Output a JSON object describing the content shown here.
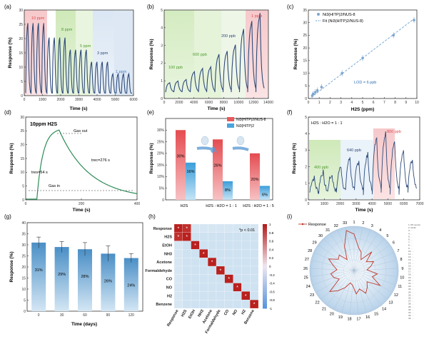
{
  "panels": {
    "a": {
      "label": "(a)",
      "xlabel": "Time (s)",
      "ylabel": "Response (%)",
      "xticks": [
        "0",
        "1000",
        "2000",
        "3000",
        "4000",
        "5000",
        "6000"
      ],
      "yticks": [
        "0",
        "5",
        "10",
        "15",
        "20",
        "25",
        "30"
      ],
      "regions": [
        "10 ppm",
        "8 ppm",
        "5 ppm",
        "3 ppm",
        "1 ppm"
      ]
    },
    "b": {
      "label": "(b)",
      "xlabel": "Time (s)",
      "ylabel": "Response (%)",
      "xticks": [
        "0",
        "2000",
        "4000",
        "6000",
        "8000",
        "10000",
        "12000",
        "14000"
      ],
      "yticks": [
        "0",
        "1",
        "2",
        "3",
        "4",
        "5"
      ],
      "regions": [
        "100 ppb",
        "600 ppb",
        "200 ppb",
        "1 ppm"
      ]
    },
    "c": {
      "label": "(c)",
      "xlabel": "H2S (ppm)",
      "ylabel": "Response (%)",
      "xticks": [
        "0",
        "1",
        "2",
        "3",
        "4",
        "5",
        "6",
        "7",
        "8",
        "9",
        "10"
      ],
      "yticks": [
        "0",
        "5",
        "10",
        "15",
        "20",
        "25",
        "30",
        "35"
      ],
      "legend_points": "Ni3(HITP)2/NUS-8",
      "legend_fit": "Fit (Ni3(HITP)2/NUS-8)",
      "annotation": "LOD = 6 ppb"
    },
    "d": {
      "label": "(d)",
      "title": "10ppm H2S",
      "xlabel": "Time (s)",
      "ylabel": "Response (%)",
      "xticks": [
        "0",
        "200",
        "400"
      ],
      "yticks": [
        "0",
        "5",
        "10",
        "15",
        "20",
        "25",
        "30"
      ],
      "gas_out": "Gas out",
      "gas_in": "Gas in",
      "t_res": "tres=54 s",
      "t_rec": "trec=276 s"
    },
    "e": {
      "label": "(e)",
      "ylabel": "Response (%)",
      "legend": [
        "Ni3(HITP)2/NUS-8",
        "Ni3(HITP)2"
      ],
      "yticks": [
        "0",
        "5%",
        "10%",
        "15%",
        "20%",
        "25%",
        "30%"
      ],
      "groups": [
        "H2S",
        "H2S : H2O = 1 : 1",
        "H2S : H2O = 1 : 5"
      ],
      "bar_labels": [
        "30%",
        "16%",
        "26%",
        "8%",
        "20%",
        "6%"
      ]
    },
    "f": {
      "label": "(f)",
      "title": "H2S : H2O = 1 : 1",
      "xlabel": "Time (s)",
      "ylabel": "Response (%)",
      "xticks": [
        "0",
        "1000",
        "2000",
        "3000",
        "4000",
        "5000",
        "6000",
        "7000"
      ],
      "yticks": [
        "0",
        "1",
        "2",
        "3",
        "4",
        "5"
      ],
      "regions": [
        "400 ppb",
        "640 ppb",
        "800 ppb"
      ]
    },
    "g": {
      "label": "(g)",
      "xlabel": "Time (days)",
      "ylabel": "Response (%)",
      "xticks": [
        "0",
        "30",
        "60",
        "90",
        "120"
      ],
      "yticks": [
        "0",
        "5",
        "10",
        "15",
        "20",
        "25",
        "30",
        "35",
        "40"
      ],
      "bar_labels": [
        "31%",
        "29%",
        "28%",
        "26%",
        "24%"
      ]
    },
    "h": {
      "label": "(h)",
      "annotation": "*p < 0.01",
      "rows": [
        "Response",
        "H2S",
        "EtOH",
        "NH3",
        "Acetone",
        "Formaldehyde",
        "CO",
        "NO",
        "H2",
        "Benzene"
      ],
      "colorbar": [
        "1",
        "0.8",
        "0.6",
        "0.4",
        "0.2",
        "0",
        "-0.2",
        "-0.4",
        "-0.6",
        "-0.8",
        "-1"
      ]
    },
    "i": {
      "label": "(i)",
      "legend": "Response",
      "spokes": [
        "1",
        "2",
        "3",
        "4",
        "5",
        "6",
        "7",
        "8",
        "9",
        "10",
        "11",
        "12",
        "13",
        "14",
        "15",
        "16",
        "17",
        "18",
        "19",
        "20",
        "21",
        "22",
        "23",
        "24",
        "25",
        "26",
        "27",
        "28",
        "29",
        "30",
        "31",
        "32",
        "33"
      ],
      "side_list": [
        "1: RF sensor",
        "2: QCM",
        "3: ...",
        "4: ...",
        "5: ...",
        "6: ...",
        "7: ...",
        "8: ...",
        "9: ...",
        "10: ...",
        "11: ...",
        "12: ...",
        "13: ...",
        "14: ...",
        "15: ...",
        "16: ...",
        "17: ...",
        "18: ...",
        "19: ...",
        "20: ...",
        "21: ...",
        "22: ...",
        "23: ...",
        "24: ...",
        "25: ...",
        "26: ...",
        "27: ...",
        "28: ...",
        "29: ...",
        "30: ...",
        "31: ...",
        "32: ...",
        "33: ..."
      ]
    }
  },
  "chart_data": [
    {
      "panel": "c",
      "type": "scatter",
      "x": [
        0.1,
        0.2,
        0.4,
        0.6,
        1,
        3,
        5,
        8,
        10
      ],
      "y": [
        1.2,
        1.8,
        2.5,
        3.2,
        4.5,
        10,
        16,
        25,
        31
      ],
      "xlim": [
        0,
        10
      ],
      "ylim": [
        0,
        35
      ]
    },
    {
      "panel": "e",
      "type": "bar",
      "categories": [
        "H2S",
        "H2S:H2O=1:1",
        "H2S:H2O=1:5"
      ],
      "series": [
        {
          "name": "Ni3(HITP)2/NUS-8",
          "values": [
            30,
            26,
            20
          ]
        },
        {
          "name": "Ni3(HITP)2",
          "values": [
            16,
            8,
            6
          ]
        }
      ],
      "ylim": [
        0,
        35
      ]
    },
    {
      "panel": "g",
      "type": "bar",
      "categories": [
        "0",
        "30",
        "60",
        "90",
        "120"
      ],
      "values": [
        31,
        29,
        28,
        26,
        24
      ],
      "errors": [
        2.5,
        2.5,
        3,
        3.5,
        2
      ],
      "ylim": [
        0,
        40
      ]
    },
    {
      "panel": "i",
      "type": "radar",
      "values": [
        0.85,
        0.55,
        0.45,
        0.3,
        0.6,
        0.35,
        0.5,
        0.4,
        0.3,
        0.55,
        0.45,
        0.7,
        0.4,
        0.5,
        0.6,
        0.45,
        0.55,
        0.35,
        0.3,
        0.45,
        0.6,
        0.75,
        0.4,
        0.5,
        0.55,
        0.4,
        0.5,
        0.65,
        0.45,
        0.5,
        0.3,
        0.6,
        0.95
      ]
    }
  ],
  "colors": {
    "line": "#2e4b7a",
    "red": "#e8595b",
    "blue": "#4aa4dc",
    "pink": "#f4c6c8",
    "green": "#c9e8b4",
    "lightblue": "#c9dcef"
  }
}
